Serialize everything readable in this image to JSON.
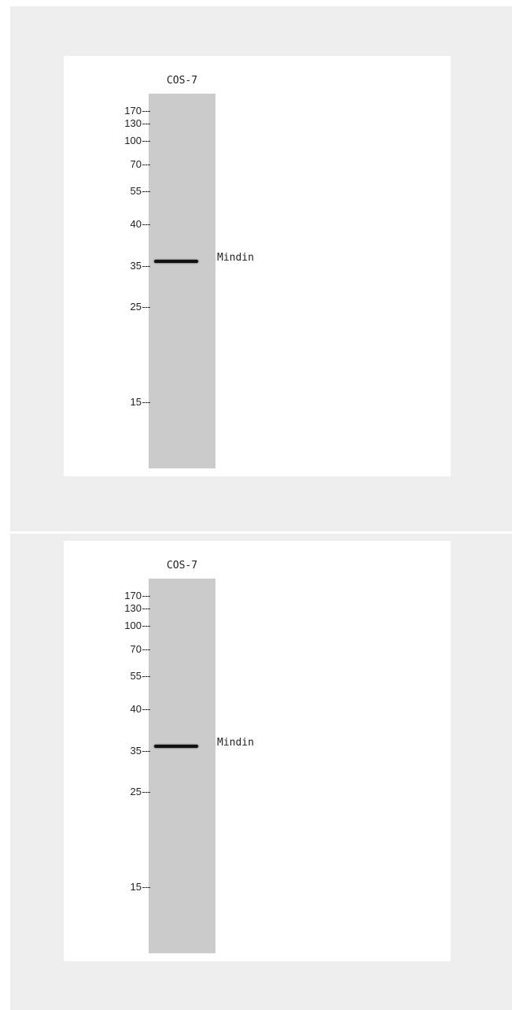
{
  "panels": [
    {
      "lane_label": "COS-7",
      "markers": [
        "170",
        "130",
        "100",
        "70",
        "55",
        "40",
        "35",
        "25",
        "15"
      ],
      "band_label": "Mindin"
    },
    {
      "lane_label": "COS-7",
      "markers": [
        "170",
        "130",
        "100",
        "70",
        "55",
        "40",
        "35",
        "25",
        "15"
      ],
      "band_label": "Mindin"
    }
  ]
}
